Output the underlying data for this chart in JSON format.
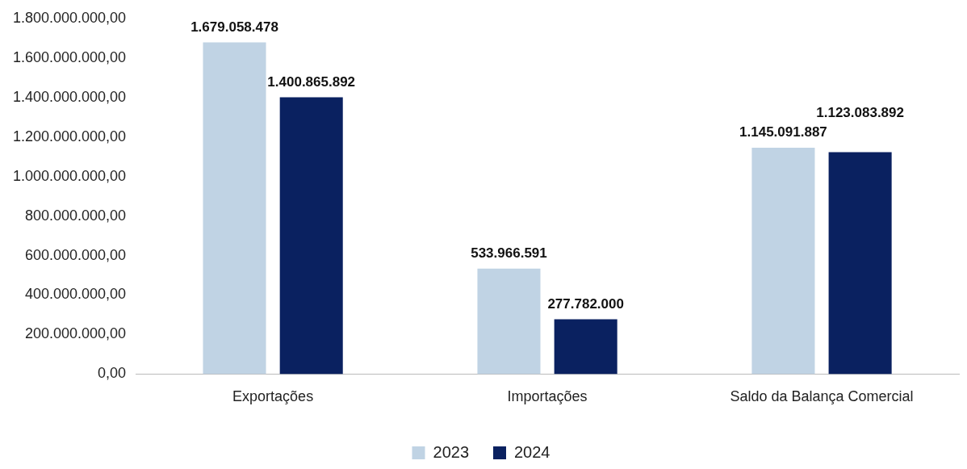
{
  "chart_data": {
    "type": "bar",
    "categories": [
      "Exportações",
      "Importações",
      "Saldo da Balança Comercial"
    ],
    "series": [
      {
        "name": "2023",
        "color": "#c0d3e4",
        "values": [
          1679058478,
          533966591,
          1145091887
        ],
        "value_labels": [
          "1.679.058.478",
          "533.966.591",
          "1.145.091.887"
        ]
      },
      {
        "name": "2024",
        "color": "#0a2160",
        "values": [
          1400865892,
          277782000,
          1123083892
        ],
        "value_labels": [
          "1.400.865.892",
          "277.782.000",
          "1.123.083.892"
        ]
      }
    ],
    "ylim": [
      0,
      1800000000
    ],
    "yticks": [
      {
        "value": 0,
        "label": "0,00"
      },
      {
        "value": 200000000,
        "label": "200.000.000,00"
      },
      {
        "value": 400000000,
        "label": "400.000.000,00"
      },
      {
        "value": 600000000,
        "label": "600.000.000,00"
      },
      {
        "value": 800000000,
        "label": "800.000.000,00"
      },
      {
        "value": 1000000000,
        "label": "1.000.000.000,00"
      },
      {
        "value": 1200000000,
        "label": "1.200.000.000,00"
      },
      {
        "value": 1400000000,
        "label": "1.400.000.000,00"
      },
      {
        "value": 1600000000,
        "label": "1.600.000.000,00"
      },
      {
        "value": 1800000000,
        "label": "1.800.000.000,00"
      }
    ],
    "grid": false,
    "legend": "bottom"
  }
}
